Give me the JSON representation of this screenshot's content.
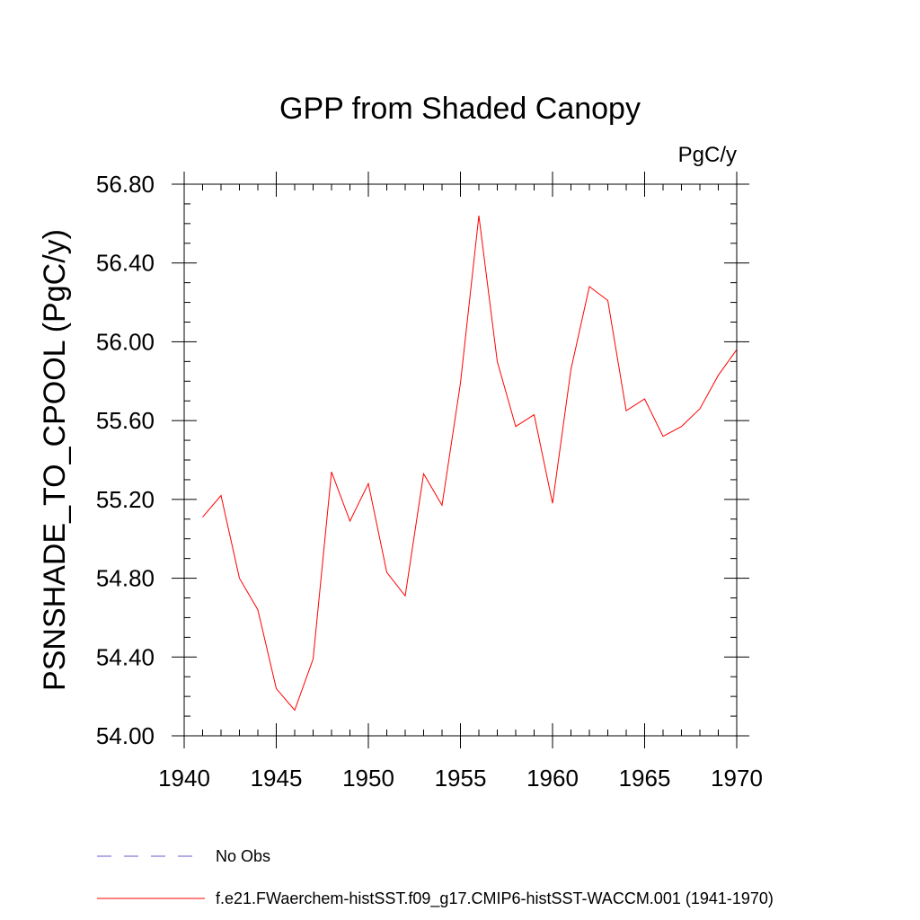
{
  "chart_data": {
    "type": "line",
    "title": "GPP from Shaded Canopy",
    "units_label": "PgC/y",
    "xlabel": "",
    "ylabel": "PSNSHADE_TO_CPOOL  (PgC/y)",
    "xlim": [
      1940,
      1970
    ],
    "ylim": [
      54.0,
      56.8
    ],
    "xticks": [
      1940,
      1945,
      1950,
      1955,
      1960,
      1965,
      1970
    ],
    "xtick_labels": [
      "1940",
      "1945",
      "1950",
      "1955",
      "1960",
      "1965",
      "1970"
    ],
    "yticks": [
      54.0,
      54.4,
      54.8,
      55.2,
      55.6,
      56.0,
      56.4,
      56.8
    ],
    "ytick_labels": [
      "54.00",
      "54.40",
      "54.80",
      "55.20",
      "55.60",
      "56.00",
      "56.40",
      "56.80"
    ],
    "grid": false,
    "legend_position": "bottom",
    "series": [
      {
        "name": "f.e21.FWaerchem-histSST.f09_g17.CMIP6-histSST-WACCM.001 (1941-1970)",
        "color": "#ff0000",
        "style": "solid",
        "x": [
          1941,
          1942,
          1943,
          1944,
          1945,
          1946,
          1947,
          1948,
          1949,
          1950,
          1951,
          1952,
          1953,
          1954,
          1955,
          1956,
          1957,
          1958,
          1959,
          1960,
          1961,
          1962,
          1963,
          1964,
          1965,
          1966,
          1967,
          1968,
          1969,
          1970
        ],
        "values": [
          55.11,
          55.22,
          54.8,
          54.64,
          54.24,
          54.13,
          54.39,
          55.34,
          55.09,
          55.28,
          54.83,
          54.71,
          55.33,
          55.17,
          55.79,
          56.64,
          55.9,
          55.57,
          55.63,
          55.18,
          55.86,
          56.28,
          56.21,
          55.65,
          55.71,
          55.52,
          55.57,
          55.66,
          55.83,
          55.96
        ]
      },
      {
        "name": "No Obs",
        "color": "#6a5acd",
        "style": "dashed",
        "x": [],
        "values": []
      }
    ]
  }
}
